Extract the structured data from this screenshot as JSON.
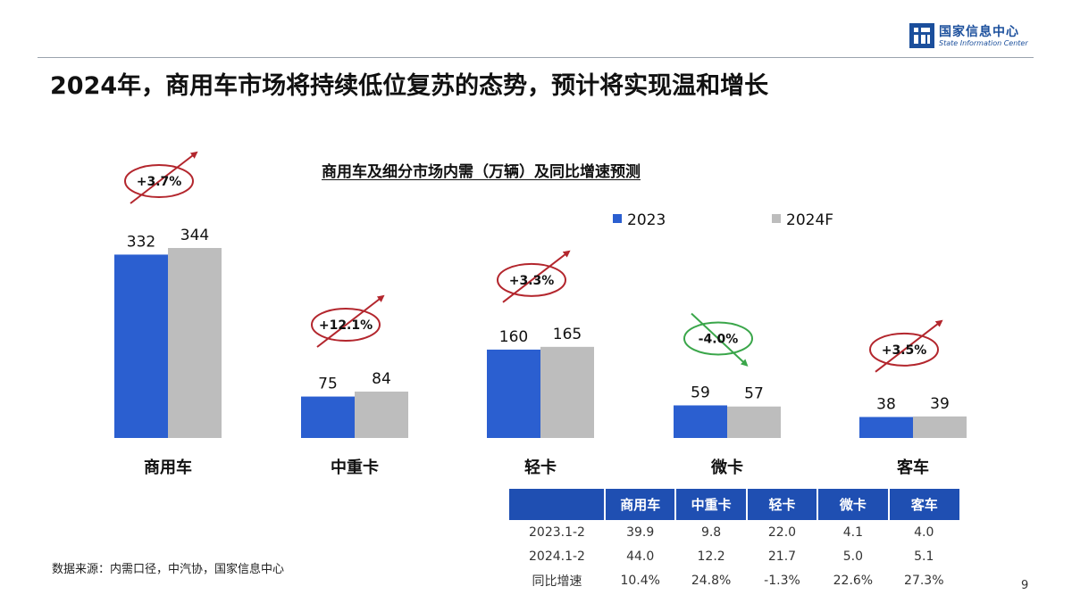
{
  "header": {
    "logo_cn": "国家信息中心",
    "logo_en": "State Information Center",
    "title": "2024年，商用车市场将持续低位复苏的态势，预计将实现温和增长"
  },
  "chart_data": {
    "type": "bar",
    "title": "商用车及细分市场内需（万辆）及同比增速预测",
    "categories": [
      "商用车",
      "中重卡",
      "轻卡",
      "微卡",
      "客车"
    ],
    "series": [
      {
        "name": "2023",
        "values": [
          332,
          75,
          160,
          59,
          38
        ],
        "color": "#2b5fd0"
      },
      {
        "name": "2024F",
        "values": [
          344,
          84,
          165,
          57,
          39
        ],
        "color": "#bdbdbd"
      }
    ],
    "growth_labels": [
      "+3.7%",
      "+12.1%",
      "+3.3%",
      "-4.0%",
      "+3.5%"
    ],
    "growth_direction": [
      "up",
      "up",
      "up",
      "down",
      "up"
    ],
    "growth_colors": {
      "up": "#b3262d",
      "down": "#3aa64a"
    },
    "ylim": [
      0,
      344
    ],
    "legend_position": "top-right",
    "grid": false
  },
  "table": {
    "headers": [
      "",
      "商用车",
      "中重卡",
      "轻卡",
      "微卡",
      "客车"
    ],
    "rows": [
      {
        "label": "2023.1-2",
        "values": [
          "39.9",
          "9.8",
          "22.0",
          "4.1",
          "4.0"
        ]
      },
      {
        "label": "2024.1-2",
        "values": [
          "44.0",
          "12.2",
          "21.7",
          "5.0",
          "5.1"
        ]
      },
      {
        "label": "同比增速",
        "values": [
          "10.4%",
          "24.8%",
          "-1.3%",
          "22.6%",
          "27.3%"
        ]
      }
    ]
  },
  "footer": {
    "source": "数据来源：内需口径，中汽协，国家信息中心",
    "page_number": "9"
  }
}
